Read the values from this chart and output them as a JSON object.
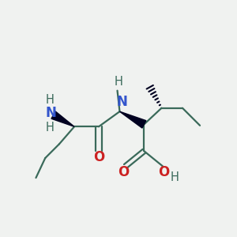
{
  "background_color": "#f0f2f0",
  "bond_color": "#3a6a5a",
  "nitrogen_color": "#3355cc",
  "oxygen_color": "#cc2222",
  "text_color": "#3a6a5a",
  "wedge_color": "#000020",
  "fig_width": 3.0,
  "fig_height": 3.0,
  "dpi": 100,
  "xlim": [
    0,
    1
  ],
  "ylim": [
    0,
    1
  ],
  "bond_lw": 1.6,
  "label_fontsize": 10.5
}
